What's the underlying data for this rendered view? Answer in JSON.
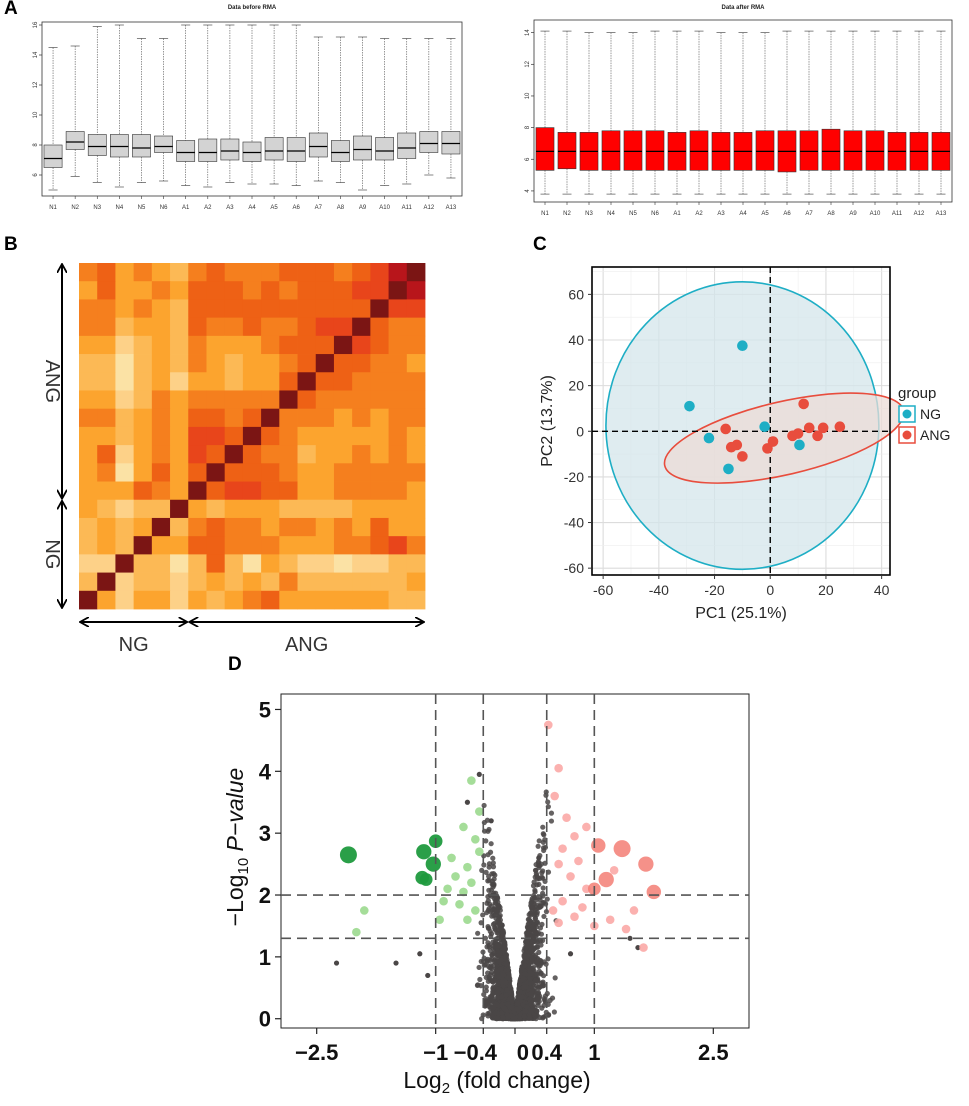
{
  "panel_labels": {
    "a": "A",
    "b": "B",
    "c": "C",
    "d": "D"
  },
  "chart_data": [
    {
      "id": "A-left",
      "type": "boxplot",
      "title": "Data before RMA",
      "categories": [
        "N1",
        "N2",
        "N3",
        "N4",
        "N5",
        "N6",
        "A1",
        "A2",
        "A3",
        "A4",
        "A5",
        "A6",
        "A7",
        "A8",
        "A9",
        "A10",
        "A11",
        "A12",
        "A13"
      ],
      "ylim": [
        4.6,
        16.2
      ],
      "yticks": [
        6,
        8,
        10,
        12,
        14,
        16
      ],
      "box_color": "#d3d3d3",
      "boxes": [
        {
          "min": 5.0,
          "q1": 6.5,
          "median": 7.1,
          "q3": 8.0,
          "max": 14.5
        },
        {
          "min": 5.9,
          "q1": 7.7,
          "median": 8.2,
          "q3": 8.9,
          "max": 14.6
        },
        {
          "min": 5.5,
          "q1": 7.3,
          "median": 7.9,
          "q3": 8.7,
          "max": 15.9
        },
        {
          "min": 5.2,
          "q1": 7.2,
          "median": 7.9,
          "q3": 8.7,
          "max": 16.0
        },
        {
          "min": 5.5,
          "q1": 7.2,
          "median": 7.8,
          "q3": 8.7,
          "max": 15.1
        },
        {
          "min": 5.6,
          "q1": 7.5,
          "median": 7.9,
          "q3": 8.6,
          "max": 15.1
        },
        {
          "min": 5.3,
          "q1": 6.9,
          "median": 7.5,
          "q3": 8.3,
          "max": 16.0
        },
        {
          "min": 5.2,
          "q1": 6.9,
          "median": 7.5,
          "q3": 8.4,
          "max": 16.0
        },
        {
          "min": 5.5,
          "q1": 7.0,
          "median": 7.6,
          "q3": 8.4,
          "max": 16.0
        },
        {
          "min": 5.4,
          "q1": 6.9,
          "median": 7.5,
          "q3": 8.2,
          "max": 16.0
        },
        {
          "min": 5.4,
          "q1": 7.0,
          "median": 7.6,
          "q3": 8.5,
          "max": 16.0
        },
        {
          "min": 5.3,
          "q1": 6.9,
          "median": 7.6,
          "q3": 8.5,
          "max": 16.0
        },
        {
          "min": 5.6,
          "q1": 7.2,
          "median": 7.9,
          "q3": 8.8,
          "max": 15.2
        },
        {
          "min": 5.5,
          "q1": 6.9,
          "median": 7.5,
          "q3": 8.3,
          "max": 15.2
        },
        {
          "min": 5.0,
          "q1": 7.0,
          "median": 7.7,
          "q3": 8.6,
          "max": 15.2
        },
        {
          "min": 5.3,
          "q1": 7.0,
          "median": 7.6,
          "q3": 8.5,
          "max": 15.1
        },
        {
          "min": 5.4,
          "q1": 7.1,
          "median": 7.8,
          "q3": 8.8,
          "max": 15.1
        },
        {
          "min": 6.0,
          "q1": 7.5,
          "median": 8.1,
          "q3": 8.9,
          "max": 15.1
        },
        {
          "min": 5.8,
          "q1": 7.4,
          "median": 8.1,
          "q3": 8.9,
          "max": 15.1
        }
      ]
    },
    {
      "id": "A-right",
      "type": "boxplot",
      "title": "Data after RMA",
      "categories": [
        "N1",
        "N2",
        "N3",
        "N4",
        "N5",
        "N6",
        "A1",
        "A2",
        "A3",
        "A4",
        "A5",
        "A6",
        "A7",
        "A8",
        "A9",
        "A10",
        "A11",
        "A12",
        "A13"
      ],
      "ylim": [
        3.3,
        14.8
      ],
      "yticks": [
        4,
        6,
        8,
        10,
        12,
        14
      ],
      "box_color": "#ff0000",
      "boxes": [
        {
          "min": 3.8,
          "q1": 5.3,
          "median": 6.5,
          "q3": 8.0,
          "max": 14.1
        },
        {
          "min": 3.8,
          "q1": 5.4,
          "median": 6.5,
          "q3": 7.7,
          "max": 14.1
        },
        {
          "min": 3.8,
          "q1": 5.3,
          "median": 6.5,
          "q3": 7.7,
          "max": 14.0
        },
        {
          "min": 3.8,
          "q1": 5.3,
          "median": 6.5,
          "q3": 7.8,
          "max": 14.0
        },
        {
          "min": 3.8,
          "q1": 5.3,
          "median": 6.5,
          "q3": 7.8,
          "max": 14.0
        },
        {
          "min": 3.8,
          "q1": 5.3,
          "median": 6.5,
          "q3": 7.8,
          "max": 14.1
        },
        {
          "min": 3.8,
          "q1": 5.3,
          "median": 6.5,
          "q3": 7.7,
          "max": 14.1
        },
        {
          "min": 3.8,
          "q1": 5.3,
          "median": 6.5,
          "q3": 7.8,
          "max": 14.1
        },
        {
          "min": 3.8,
          "q1": 5.3,
          "median": 6.5,
          "q3": 7.7,
          "max": 14.0
        },
        {
          "min": 3.8,
          "q1": 5.3,
          "median": 6.5,
          "q3": 7.7,
          "max": 14.0
        },
        {
          "min": 3.8,
          "q1": 5.3,
          "median": 6.5,
          "q3": 7.8,
          "max": 14.0
        },
        {
          "min": 3.8,
          "q1": 5.2,
          "median": 6.5,
          "q3": 7.8,
          "max": 14.1
        },
        {
          "min": 3.8,
          "q1": 5.3,
          "median": 6.5,
          "q3": 7.8,
          "max": 14.1
        },
        {
          "min": 3.8,
          "q1": 5.3,
          "median": 6.5,
          "q3": 7.9,
          "max": 14.1
        },
        {
          "min": 3.8,
          "q1": 5.3,
          "median": 6.5,
          "q3": 7.8,
          "max": 14.1
        },
        {
          "min": 3.8,
          "q1": 5.3,
          "median": 6.5,
          "q3": 7.8,
          "max": 14.1
        },
        {
          "min": 3.8,
          "q1": 5.3,
          "median": 6.5,
          "q3": 7.7,
          "max": 14.1
        },
        {
          "min": 3.8,
          "q1": 5.3,
          "median": 6.5,
          "q3": 7.7,
          "max": 14.1
        },
        {
          "min": 3.8,
          "q1": 5.3,
          "median": 6.5,
          "q3": 7.7,
          "max": 14.1
        }
      ]
    },
    {
      "id": "B",
      "type": "heatmap",
      "size": 19,
      "colors": [
        "#fbe2a5",
        "#fdd188",
        "#fcb955",
        "#fca42e",
        "#f57f1e",
        "#ee6115",
        "#e8451b",
        "#b8151b",
        "#7b1514"
      ],
      "values": [
        [
          4,
          5,
          3,
          4,
          3,
          2,
          4,
          5,
          4,
          4,
          4,
          5,
          5,
          5,
          4,
          5,
          6,
          7,
          8
        ],
        [
          3,
          5,
          3,
          3,
          4,
          3,
          5,
          5,
          5,
          4,
          5,
          4,
          5,
          5,
          5,
          6,
          6,
          8,
          7
        ],
        [
          4,
          4,
          3,
          4,
          3,
          2,
          5,
          5,
          5,
          5,
          5,
          5,
          5,
          5,
          5,
          5,
          8,
          6,
          6
        ],
        [
          4,
          4,
          2,
          3,
          3,
          2,
          5,
          4,
          4,
          5,
          4,
          4,
          5,
          6,
          6,
          8,
          5,
          4,
          4
        ],
        [
          3,
          3,
          1,
          2,
          3,
          2,
          4,
          3,
          3,
          3,
          4,
          5,
          5,
          5,
          8,
          6,
          5,
          4,
          4
        ],
        [
          2,
          2,
          0,
          2,
          3,
          2,
          4,
          3,
          2,
          3,
          3,
          4,
          5,
          8,
          5,
          5,
          4,
          4,
          3
        ],
        [
          2,
          2,
          0,
          2,
          3,
          1,
          3,
          3,
          2,
          3,
          3,
          5,
          8,
          5,
          5,
          4,
          4,
          4,
          4
        ],
        [
          3,
          3,
          1,
          2,
          4,
          3,
          4,
          4,
          4,
          4,
          4,
          8,
          5,
          4,
          4,
          4,
          4,
          4,
          4
        ],
        [
          4,
          4,
          2,
          3,
          4,
          3,
          5,
          5,
          4,
          5,
          8,
          4,
          4,
          4,
          3,
          4,
          3,
          4,
          4
        ],
        [
          3,
          3,
          2,
          3,
          4,
          3,
          6,
          6,
          5,
          8,
          5,
          4,
          3,
          3,
          3,
          3,
          3,
          4,
          3
        ],
        [
          3,
          5,
          1,
          3,
          4,
          3,
          6,
          5,
          8,
          5,
          4,
          4,
          2,
          3,
          3,
          4,
          3,
          4,
          3
        ],
        [
          3,
          4,
          0,
          3,
          5,
          3,
          5,
          8,
          5,
          5,
          5,
          4,
          3,
          3,
          4,
          4,
          4,
          4,
          4
        ],
        [
          3,
          3,
          3,
          5,
          4,
          3,
          8,
          5,
          6,
          6,
          5,
          5,
          3,
          3,
          4,
          4,
          4,
          4,
          3
        ],
        [
          3,
          2,
          1,
          2,
          2,
          8,
          3,
          2,
          3,
          3,
          3,
          2,
          2,
          2,
          2,
          3,
          3,
          3,
          3
        ],
        [
          2,
          3,
          2,
          3,
          8,
          2,
          4,
          5,
          4,
          4,
          3,
          4,
          4,
          3,
          4,
          3,
          5,
          3,
          3
        ],
        [
          2,
          3,
          2,
          8,
          3,
          3,
          5,
          5,
          4,
          4,
          4,
          3,
          3,
          3,
          4,
          4,
          5,
          6,
          4
        ],
        [
          1,
          1,
          8,
          2,
          2,
          0,
          2,
          5,
          2,
          0,
          3,
          2,
          1,
          1,
          0,
          1,
          1,
          2,
          2
        ],
        [
          2,
          8,
          1,
          2,
          2,
          1,
          2,
          3,
          2,
          3,
          2,
          4,
          2,
          2,
          2,
          2,
          2,
          2,
          3
        ],
        [
          8,
          3,
          1,
          3,
          3,
          1,
          3,
          2,
          3,
          4,
          5,
          3,
          3,
          3,
          3,
          3,
          3,
          2,
          2
        ]
      ],
      "left_labels": [
        {
          "label": "ANG",
          "from": 0,
          "to": 13
        },
        {
          "label": "NG",
          "from": 13,
          "to": 19
        }
      ],
      "bottom_labels": [
        {
          "label": "NG",
          "from": 0,
          "to": 6
        },
        {
          "label": "ANG",
          "from": 6,
          "to": 19
        }
      ]
    },
    {
      "id": "C",
      "type": "scatter",
      "xlabel": "PC1 (25.1%)",
      "ylabel": "PC2 (13.7%)",
      "xlim": [
        -64,
        43
      ],
      "ylim": [
        -63,
        72
      ],
      "xticks": [
        -60,
        -40,
        -20,
        0,
        20,
        40
      ],
      "yticks": [
        -60,
        -40,
        -20,
        0,
        20,
        40,
        60
      ],
      "legend_title": "group",
      "series": [
        {
          "name": "NG",
          "color": "#1eaec5",
          "fill": "#d4e6eb",
          "points": [
            [
              -10,
              37.5
            ],
            [
              -29,
              11
            ],
            [
              -22,
              -3
            ],
            [
              -2,
              2
            ],
            [
              -15,
              -16.5
            ],
            [
              10.5,
              -6
            ]
          ],
          "ellipse": {
            "cx": -10,
            "cy": 2.5,
            "rx": 49,
            "ry": 63,
            "angle": 0
          }
        },
        {
          "name": "ANG",
          "color": "#e84d3d",
          "fill": "#ecdcd7",
          "points": [
            [
              -16,
              1
            ],
            [
              -12,
              -6
            ],
            [
              -14,
              -7
            ],
            [
              -10,
              -11
            ],
            [
              -1,
              -7.5
            ],
            [
              1,
              -4.5
            ],
            [
              8,
              -2
            ],
            [
              10,
              -1
            ],
            [
              12,
              12
            ],
            [
              14,
              1.5
            ],
            [
              17,
              -2
            ],
            [
              19,
              1.5
            ],
            [
              25,
              2
            ]
          ],
          "ellipse": {
            "cx": 5,
            "cy": -3,
            "rx": 44,
            "ry": 16,
            "angle": -13
          }
        }
      ]
    },
    {
      "id": "D",
      "type": "volcano",
      "xlabel_prefix": "Log",
      "xlabel_sub": "2",
      "xlabel_suffix": " (fold change)",
      "ylabel_prefix": "−Log",
      "ylabel_sub": "10",
      "ylabel_italic": " P−value",
      "xlim": [
        -2.95,
        2.95
      ],
      "ylim": [
        -0.15,
        5.25
      ],
      "x_tick_labels": [
        "−2.5",
        "−1",
        "−0.4",
        "0",
        "0.4",
        "1",
        "2.5"
      ],
      "x_tick_values": [
        -2.5,
        -1,
        -0.4,
        0,
        0.4,
        1,
        2.5
      ],
      "x_label_offsets": [
        0,
        0,
        -0.1,
        0.1,
        0,
        0,
        0
      ],
      "yticks": [
        0,
        1,
        2,
        3,
        4,
        5
      ],
      "vlines": [
        -1,
        -0.4,
        0.4,
        1
      ],
      "hlines": [
        2,
        1.3
      ],
      "colors": {
        "ns": "#4a4646",
        "down_small": "#9bd98e",
        "down_big": "#1f9a3e",
        "up_small": "#fba9a6",
        "up_big": "#f37e74"
      },
      "points_down_big": [
        [
          -2.1,
          2.65,
          1
        ],
        [
          -1.15,
          2.7,
          0.9
        ],
        [
          -1.03,
          2.5,
          0.9
        ],
        [
          -1.0,
          2.87,
          0.8
        ],
        [
          -1.17,
          2.28,
          0.8
        ],
        [
          -1.12,
          2.25,
          0.75
        ]
      ],
      "points_up_big": [
        [
          1.05,
          2.8,
          0.85
        ],
        [
          1.35,
          2.75,
          1
        ],
        [
          1.65,
          2.5,
          0.9
        ],
        [
          1.75,
          2.05,
          0.85
        ],
        [
          1.15,
          2.25,
          0.9
        ],
        [
          1.0,
          2.1,
          0.75
        ]
      ],
      "points_down_small": [
        [
          -0.55,
          3.85
        ],
        [
          -0.45,
          3.35
        ],
        [
          -0.65,
          3.1
        ],
        [
          -0.5,
          2.9
        ],
        [
          -0.8,
          2.6
        ],
        [
          -0.6,
          2.45
        ],
        [
          -1.9,
          1.75
        ],
        [
          -2.0,
          1.4
        ],
        [
          -0.95,
          1.6
        ],
        [
          -0.85,
          2.1
        ],
        [
          -0.7,
          1.85
        ],
        [
          -0.55,
          2.2
        ],
        [
          -0.75,
          2.3
        ],
        [
          -0.45,
          2.7
        ],
        [
          -0.6,
          1.6
        ],
        [
          -0.5,
          1.75
        ],
        [
          -0.9,
          1.9
        ],
        [
          -0.65,
          2.05
        ]
      ],
      "points_up_small": [
        [
          0.42,
          4.75
        ],
        [
          0.55,
          4.05
        ],
        [
          0.5,
          3.6
        ],
        [
          0.65,
          3.25
        ],
        [
          0.9,
          3.1
        ],
        [
          0.75,
          2.95
        ],
        [
          0.6,
          2.75
        ],
        [
          0.55,
          2.5
        ],
        [
          0.7,
          2.3
        ],
        [
          0.8,
          2.55
        ],
        [
          0.9,
          2.1
        ],
        [
          1.25,
          2.4
        ],
        [
          0.48,
          1.75
        ],
        [
          0.6,
          1.9
        ],
        [
          0.75,
          1.65
        ],
        [
          0.85,
          1.8
        ],
        [
          1.2,
          1.6
        ],
        [
          1.4,
          1.45
        ],
        [
          0.55,
          1.55
        ],
        [
          1.0,
          1.5
        ],
        [
          1.5,
          1.75
        ],
        [
          1.62,
          1.15
        ]
      ],
      "points_ns_outliers": [
        [
          -2.25,
          0.9
        ],
        [
          -1.5,
          0.9
        ],
        [
          -1.2,
          1.05
        ],
        [
          -1.1,
          0.7
        ],
        [
          -0.45,
          3.95
        ],
        [
          -0.6,
          3.5
        ],
        [
          1.55,
          1.15
        ],
        [
          1.45,
          1.3
        ],
        [
          0.7,
          1.05
        ],
        [
          -0.3,
          3.2
        ],
        [
          0.3,
          2.6
        ]
      ]
    }
  ]
}
